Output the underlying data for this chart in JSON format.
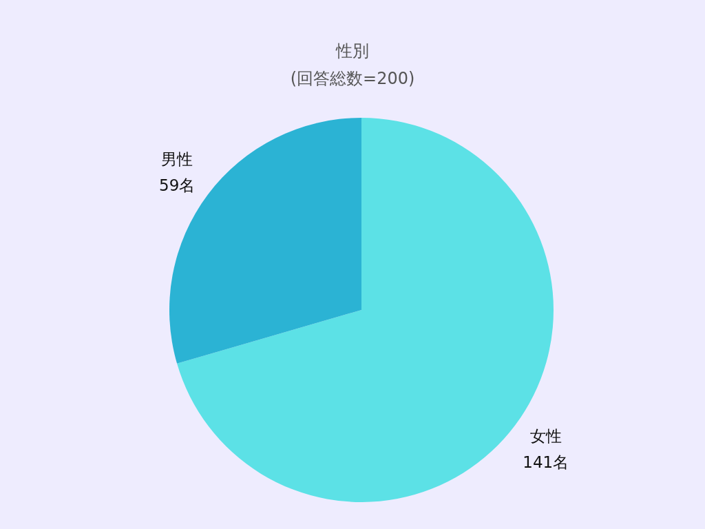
{
  "chart_data": {
    "type": "pie",
    "title": "性別",
    "subtitle": "(回答総数=200)",
    "categories": [
      "女性",
      "男性"
    ],
    "values": [
      141,
      59
    ],
    "colors": [
      "#5ce1e6",
      "#2bb3d4"
    ],
    "value_labels": [
      "141名",
      "59名"
    ],
    "legend": false
  }
}
